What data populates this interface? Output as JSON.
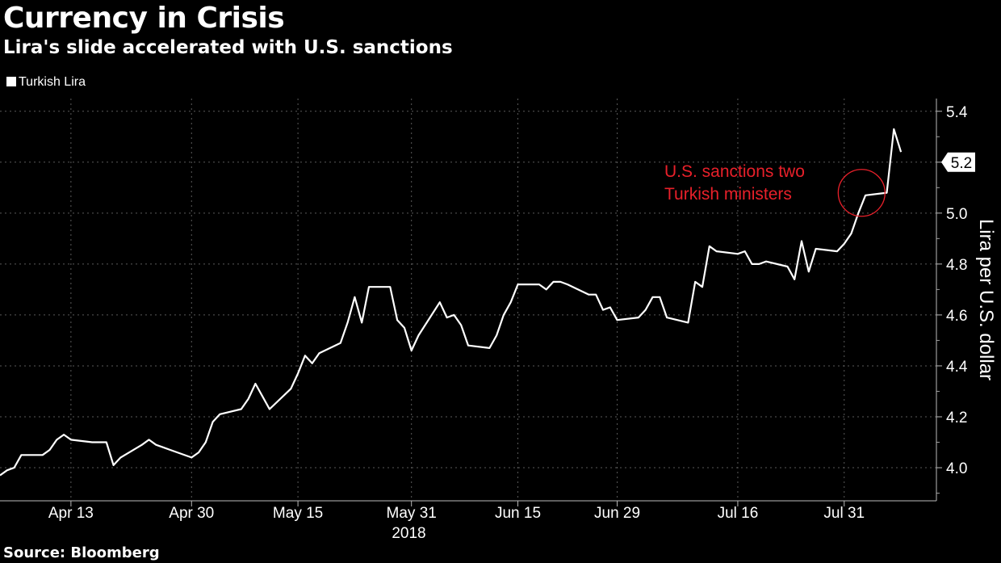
{
  "title": "Currency in Crisis",
  "subtitle": "Lira's slide accelerated with U.S. sanctions",
  "legend": {
    "label": "Turkish Lira",
    "color": "#ffffff"
  },
  "source": "Source: Bloomberg",
  "chart_data": {
    "type": "line",
    "ylabel": "Lira per U.S. dollar",
    "ylim": [
      3.87,
      5.45
    ],
    "yticks": [
      4.0,
      4.2,
      4.4,
      4.6,
      4.8,
      5.0,
      5.2,
      5.4
    ],
    "ytick_labels": [
      "4.0",
      "4.2",
      "4.4",
      "4.6",
      "4.8",
      "5.0",
      "5.2",
      "5.4"
    ],
    "xlim": [
      "2018-04-03",
      "2018-08-13"
    ],
    "xticks": [
      "2018-04-13",
      "2018-04-30",
      "2018-05-15",
      "2018-05-31",
      "2018-06-15",
      "2018-06-29",
      "2018-07-16",
      "2018-07-31"
    ],
    "xtick_labels": [
      "Apr 13",
      "Apr 30",
      "May 15",
      "May 31",
      "Jun 15",
      "Jun 29",
      "Jul 16",
      "Jul 31"
    ],
    "xaxis_year": "2018",
    "grid": "dashed horizontal and vertical",
    "last_value_label": "5.2",
    "annotation": {
      "text_lines": [
        "U.S. sanctions two",
        "Turkish ministers"
      ],
      "color": "#e8202a",
      "x": "2018-08-02",
      "y": 5.07
    },
    "series": [
      {
        "name": "Turkish Lira",
        "color": "#ffffff",
        "x": [
          "2018-04-03",
          "2018-04-04",
          "2018-04-05",
          "2018-04-06",
          "2018-04-09",
          "2018-04-10",
          "2018-04-11",
          "2018-04-12",
          "2018-04-13",
          "2018-04-16",
          "2018-04-17",
          "2018-04-18",
          "2018-04-19",
          "2018-04-20",
          "2018-04-23",
          "2018-04-24",
          "2018-04-25",
          "2018-04-26",
          "2018-04-27",
          "2018-04-30",
          "2018-05-01",
          "2018-05-02",
          "2018-05-03",
          "2018-05-04",
          "2018-05-07",
          "2018-05-08",
          "2018-05-09",
          "2018-05-10",
          "2018-05-11",
          "2018-05-14",
          "2018-05-15",
          "2018-05-16",
          "2018-05-17",
          "2018-05-18",
          "2018-05-21",
          "2018-05-22",
          "2018-05-23",
          "2018-05-24",
          "2018-05-25",
          "2018-05-28",
          "2018-05-29",
          "2018-05-30",
          "2018-05-31",
          "2018-06-01",
          "2018-06-04",
          "2018-06-05",
          "2018-06-06",
          "2018-06-07",
          "2018-06-08",
          "2018-06-11",
          "2018-06-12",
          "2018-06-13",
          "2018-06-14",
          "2018-06-15",
          "2018-06-18",
          "2018-06-19",
          "2018-06-20",
          "2018-06-21",
          "2018-06-22",
          "2018-06-25",
          "2018-06-26",
          "2018-06-27",
          "2018-06-28",
          "2018-06-29",
          "2018-07-02",
          "2018-07-03",
          "2018-07-04",
          "2018-07-05",
          "2018-07-06",
          "2018-07-09",
          "2018-07-10",
          "2018-07-11",
          "2018-07-12",
          "2018-07-13",
          "2018-07-16",
          "2018-07-17",
          "2018-07-18",
          "2018-07-19",
          "2018-07-20",
          "2018-07-23",
          "2018-07-24",
          "2018-07-25",
          "2018-07-26",
          "2018-07-27",
          "2018-07-30",
          "2018-07-31",
          "2018-08-01",
          "2018-08-02",
          "2018-08-03",
          "2018-08-06",
          "2018-08-07",
          "2018-08-08"
        ],
        "values": [
          3.97,
          3.99,
          4.0,
          4.05,
          4.05,
          4.07,
          4.11,
          4.13,
          4.11,
          4.1,
          4.1,
          4.1,
          4.01,
          4.04,
          4.09,
          4.11,
          4.09,
          4.08,
          4.07,
          4.04,
          4.06,
          4.1,
          4.18,
          4.21,
          4.23,
          4.27,
          4.33,
          4.28,
          4.23,
          4.31,
          4.37,
          4.44,
          4.41,
          4.45,
          4.49,
          4.57,
          4.67,
          4.57,
          4.71,
          4.71,
          4.58,
          4.55,
          4.46,
          4.52,
          4.65,
          4.59,
          4.6,
          4.56,
          4.48,
          4.47,
          4.52,
          4.6,
          4.65,
          4.72,
          4.72,
          4.7,
          4.73,
          4.73,
          4.72,
          4.68,
          4.68,
          4.62,
          4.63,
          4.58,
          4.59,
          4.62,
          4.67,
          4.67,
          4.59,
          4.57,
          4.73,
          4.71,
          4.87,
          4.85,
          4.84,
          4.85,
          4.8,
          4.8,
          4.81,
          4.79,
          4.74,
          4.89,
          4.77,
          4.86,
          4.85,
          4.88,
          4.92,
          5.0,
          5.07,
          5.08,
          5.33,
          5.24
        ]
      }
    ]
  }
}
